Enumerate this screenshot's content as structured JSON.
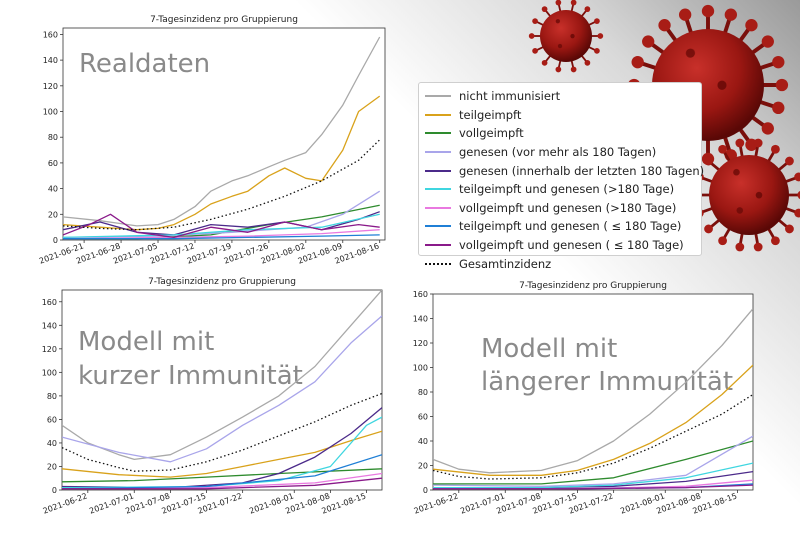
{
  "legend": [
    {
      "name": "nicht immunisiert",
      "color": "#a9a9a9",
      "dash": false
    },
    {
      "name": "teilgeimpft",
      "color": "#d9a21b",
      "dash": false
    },
    {
      "name": "vollgeimpft",
      "color": "#2e8b2e",
      "dash": false
    },
    {
      "name": "genesen (vor mehr als 180 Tagen)",
      "color": "#a9a5ea",
      "dash": false
    },
    {
      "name": "genesen (innerhalb der letzten 180 Tagen)",
      "color": "#4b2a8a",
      "dash": false
    },
    {
      "name": "teilgeimpft und genesen (>180 Tage)",
      "color": "#3fd6e0",
      "dash": false
    },
    {
      "name": "vollgeimpft und genesen (>180 Tage)",
      "color": "#e979e0",
      "dash": false
    },
    {
      "name": "teilgeimpft und genesen ( ≤ 180 Tage)",
      "color": "#1f7fd6",
      "dash": false
    },
    {
      "name": "vollgeimpft und genesen ( ≤ 180 Tage)",
      "color": "#8a1a8a",
      "dash": false
    },
    {
      "name": "Gesamtinzidenz",
      "color": "#111111",
      "dash": true
    }
  ],
  "chart_data": [
    {
      "type": "line",
      "title": "7-Tagesinzidenz pro Gruppierung",
      "overlay_text": [
        "Realdaten"
      ],
      "xlim": [
        "2021-06-17",
        "2021-08-17"
      ],
      "ylim": [
        0,
        165
      ],
      "yticks": [
        0,
        20,
        40,
        60,
        80,
        100,
        120,
        140,
        160
      ],
      "xticks": [
        "2021-06-21",
        "2021-06-28",
        "2021-07-05",
        "2021-07-12",
        "2021-07-19",
        "2021-07-26",
        "2021-08-02",
        "2021-08-09",
        "2021-08-16"
      ],
      "series": [
        {
          "name": "nicht immunisiert",
          "x": [
            "2021-06-17",
            "2021-06-24",
            "2021-07-01",
            "2021-07-05",
            "2021-07-08",
            "2021-07-12",
            "2021-07-15",
            "2021-07-19",
            "2021-07-22",
            "2021-07-26",
            "2021-07-29",
            "2021-08-02",
            "2021-08-05",
            "2021-08-09",
            "2021-08-12",
            "2021-08-16"
          ],
          "y": [
            18,
            15,
            11,
            12,
            16,
            26,
            38,
            46,
            50,
            57,
            62,
            68,
            82,
            105,
            128,
            158
          ]
        },
        {
          "name": "teilgeimpft",
          "x": [
            "2021-06-17",
            "2021-06-24",
            "2021-07-01",
            "2021-07-05",
            "2021-07-08",
            "2021-07-12",
            "2021-07-15",
            "2021-07-19",
            "2021-07-22",
            "2021-07-26",
            "2021-07-29",
            "2021-08-02",
            "2021-08-05",
            "2021-08-09",
            "2021-08-12",
            "2021-08-16"
          ],
          "y": [
            12,
            10,
            8,
            9,
            12,
            20,
            28,
            34,
            38,
            50,
            56,
            48,
            46,
            70,
            100,
            112
          ]
        },
        {
          "name": "vollgeimpft",
          "x": [
            "2021-06-17",
            "2021-07-01",
            "2021-07-15",
            "2021-07-26",
            "2021-08-05",
            "2021-08-16"
          ],
          "y": [
            1,
            1,
            4,
            12,
            18,
            27
          ]
        },
        {
          "name": "genesen (vor mehr als 180 Tagen)",
          "x": [
            "2021-06-17",
            "2021-07-05",
            "2021-07-19",
            "2021-08-02",
            "2021-08-09",
            "2021-08-16"
          ],
          "y": [
            2,
            3,
            6,
            10,
            20,
            38
          ]
        },
        {
          "name": "genesen (innerhalb der letzten 180 Tagen)",
          "x": [
            "2021-06-17",
            "2021-06-24",
            "2021-07-01",
            "2021-07-08",
            "2021-07-15",
            "2021-07-22",
            "2021-07-29",
            "2021-08-05",
            "2021-08-12",
            "2021-08-16"
          ],
          "y": [
            8,
            14,
            6,
            4,
            12,
            10,
            14,
            8,
            16,
            22
          ]
        },
        {
          "name": "teilgeimpft und genesen (>180 Tage)",
          "x": [
            "2021-06-17",
            "2021-07-08",
            "2021-07-22",
            "2021-08-05",
            "2021-08-16"
          ],
          "y": [
            2,
            4,
            8,
            10,
            20
          ]
        },
        {
          "name": "vollgeimpft und genesen (>180 Tage)",
          "x": [
            "2021-06-17",
            "2021-07-08",
            "2021-07-22",
            "2021-08-05",
            "2021-08-16"
          ],
          "y": [
            1,
            2,
            3,
            5,
            8
          ]
        },
        {
          "name": "teilgeimpft und genesen ( ≤ 180 Tage)",
          "x": [
            "2021-06-17",
            "2021-07-08",
            "2021-07-22",
            "2021-08-05",
            "2021-08-16"
          ],
          "y": [
            1,
            1,
            2,
            3,
            4
          ]
        },
        {
          "name": "vollgeimpft und genesen ( ≤ 180 Tage)",
          "x": [
            "2021-06-17",
            "2021-06-22",
            "2021-06-26",
            "2021-07-01",
            "2021-07-08",
            "2021-07-15",
            "2021-07-22",
            "2021-07-29",
            "2021-08-05",
            "2021-08-12",
            "2021-08-16"
          ],
          "y": [
            4,
            12,
            20,
            6,
            2,
            10,
            6,
            14,
            8,
            12,
            10
          ]
        },
        {
          "name": "Gesamtinzidenz",
          "x": [
            "2021-06-17",
            "2021-06-24",
            "2021-07-01",
            "2021-07-08",
            "2021-07-15",
            "2021-07-22",
            "2021-07-29",
            "2021-08-05",
            "2021-08-12",
            "2021-08-16"
          ],
          "y": [
            11,
            9,
            8,
            10,
            16,
            24,
            34,
            46,
            62,
            78
          ]
        }
      ]
    },
    {
      "type": "line",
      "title": "7-Tagesinzidenz pro Gruppierung",
      "overlay_text": [
        "Modell mit",
        "kurzer Immunität"
      ],
      "xlim": [
        "2021-06-17",
        "2021-08-18"
      ],
      "ylim": [
        0,
        170
      ],
      "yticks": [
        0,
        20,
        40,
        60,
        80,
        100,
        120,
        140,
        160
      ],
      "xticks": [
        "2021-06-22",
        "2021-07-01",
        "2021-07-08",
        "2021-07-15",
        "2021-07-22",
        "2021-08-01",
        "2021-08-08",
        "2021-08-15"
      ],
      "series": [
        {
          "name": "nicht immunisiert",
          "x": [
            "2021-06-17",
            "2021-06-22",
            "2021-06-28",
            "2021-07-01",
            "2021-07-08",
            "2021-07-15",
            "2021-07-22",
            "2021-07-29",
            "2021-08-05",
            "2021-08-12",
            "2021-08-18"
          ],
          "y": [
            55,
            40,
            30,
            26,
            30,
            45,
            62,
            80,
            105,
            140,
            172
          ]
        },
        {
          "name": "teilgeimpft",
          "x": [
            "2021-06-17",
            "2021-06-28",
            "2021-07-08",
            "2021-07-15",
            "2021-07-22",
            "2021-07-29",
            "2021-08-05",
            "2021-08-12",
            "2021-08-18"
          ],
          "y": [
            18,
            13,
            11,
            14,
            20,
            26,
            32,
            42,
            50
          ]
        },
        {
          "name": "vollgeimpft",
          "x": [
            "2021-06-17",
            "2021-07-01",
            "2021-07-15",
            "2021-07-29",
            "2021-08-18"
          ],
          "y": [
            7,
            8,
            11,
            14,
            18
          ]
        },
        {
          "name": "genesen (vor mehr als 180 Tagen)",
          "x": [
            "2021-06-17",
            "2021-06-28",
            "2021-07-08",
            "2021-07-15",
            "2021-07-22",
            "2021-07-29",
            "2021-08-05",
            "2021-08-12",
            "2021-08-18"
          ],
          "y": [
            45,
            32,
            24,
            35,
            55,
            72,
            92,
            125,
            148
          ]
        },
        {
          "name": "genesen (innerhalb der letzten 180 Tagen)",
          "x": [
            "2021-06-17",
            "2021-07-08",
            "2021-07-22",
            "2021-07-29",
            "2021-08-05",
            "2021-08-12",
            "2021-08-18"
          ],
          "y": [
            3,
            2,
            6,
            14,
            28,
            48,
            70
          ]
        },
        {
          "name": "teilgeimpft und genesen (>180 Tage)",
          "x": [
            "2021-06-17",
            "2021-07-15",
            "2021-07-29",
            "2021-08-08",
            "2021-08-15",
            "2021-08-18"
          ],
          "y": [
            2,
            3,
            8,
            20,
            55,
            62
          ]
        },
        {
          "name": "vollgeimpft und genesen (>180 Tage)",
          "x": [
            "2021-06-17",
            "2021-07-15",
            "2021-08-05",
            "2021-08-18"
          ],
          "y": [
            1,
            2,
            6,
            14
          ]
        },
        {
          "name": "teilgeimpft und genesen ( ≤ 180 Tage)",
          "x": [
            "2021-06-17",
            "2021-07-15",
            "2021-08-05",
            "2021-08-18"
          ],
          "y": [
            1,
            3,
            12,
            30
          ]
        },
        {
          "name": "vollgeimpft und genesen ( ≤ 180 Tage)",
          "x": [
            "2021-06-17",
            "2021-07-15",
            "2021-08-05",
            "2021-08-18"
          ],
          "y": [
            1,
            1,
            4,
            10
          ]
        },
        {
          "name": "Gesamtinzidenz",
          "x": [
            "2021-06-17",
            "2021-06-22",
            "2021-06-28",
            "2021-07-01",
            "2021-07-08",
            "2021-07-15",
            "2021-07-22",
            "2021-07-29",
            "2021-08-05",
            "2021-08-12",
            "2021-08-18"
          ],
          "y": [
            36,
            26,
            19,
            16,
            17,
            24,
            34,
            46,
            58,
            72,
            82
          ]
        }
      ]
    },
    {
      "type": "line",
      "title": "7-Tagesinzidenz pro Gruppierung",
      "overlay_text": [
        "Modell mit",
        "längerer Immunität"
      ],
      "xlim": [
        "2021-06-17",
        "2021-08-18"
      ],
      "ylim": [
        0,
        160
      ],
      "yticks": [
        0,
        20,
        40,
        60,
        80,
        100,
        120,
        140,
        160
      ],
      "xticks": [
        "2021-06-22",
        "2021-07-01",
        "2021-07-08",
        "2021-07-15",
        "2021-07-22",
        "2021-08-01",
        "2021-08-08",
        "2021-08-15"
      ],
      "series": [
        {
          "name": "nicht immunisiert",
          "x": [
            "2021-06-17",
            "2021-06-22",
            "2021-06-28",
            "2021-07-08",
            "2021-07-15",
            "2021-07-22",
            "2021-07-29",
            "2021-08-05",
            "2021-08-12",
            "2021-08-18"
          ],
          "y": [
            25,
            17,
            14,
            16,
            24,
            40,
            62,
            88,
            118,
            148
          ]
        },
        {
          "name": "teilgeimpft",
          "x": [
            "2021-06-17",
            "2021-06-28",
            "2021-07-08",
            "2021-07-15",
            "2021-07-22",
            "2021-07-29",
            "2021-08-05",
            "2021-08-12",
            "2021-08-18"
          ],
          "y": [
            17,
            12,
            12,
            16,
            25,
            38,
            55,
            78,
            102
          ]
        },
        {
          "name": "vollgeimpft",
          "x": [
            "2021-06-17",
            "2021-07-08",
            "2021-07-22",
            "2021-08-05",
            "2021-08-18"
          ],
          "y": [
            5,
            5,
            10,
            25,
            40
          ]
        },
        {
          "name": "genesen (vor mehr als 180 Tagen)",
          "x": [
            "2021-06-17",
            "2021-07-08",
            "2021-07-22",
            "2021-08-05",
            "2021-08-18"
          ],
          "y": [
            4,
            3,
            5,
            12,
            44
          ]
        },
        {
          "name": "genesen (innerhalb der letzten 180 Tagen)",
          "x": [
            "2021-06-17",
            "2021-07-08",
            "2021-07-22",
            "2021-08-05",
            "2021-08-18"
          ],
          "y": [
            2,
            2,
            3,
            7,
            15
          ]
        },
        {
          "name": "teilgeimpft und genesen (>180 Tage)",
          "x": [
            "2021-06-17",
            "2021-07-08",
            "2021-07-22",
            "2021-08-05",
            "2021-08-18"
          ],
          "y": [
            2,
            2,
            4,
            10,
            22
          ]
        },
        {
          "name": "vollgeimpft und genesen (>180 Tage)",
          "x": [
            "2021-06-17",
            "2021-07-15",
            "2021-08-05",
            "2021-08-18"
          ],
          "y": [
            1,
            1,
            3,
            8
          ]
        },
        {
          "name": "teilgeimpft und genesen ( ≤ 180 Tage)",
          "x": [
            "2021-06-17",
            "2021-07-15",
            "2021-08-05",
            "2021-08-18"
          ],
          "y": [
            1,
            1,
            2,
            5
          ]
        },
        {
          "name": "vollgeimpft und genesen ( ≤ 180 Tage)",
          "x": [
            "2021-06-17",
            "2021-07-15",
            "2021-08-05",
            "2021-08-18"
          ],
          "y": [
            1,
            1,
            2,
            4
          ]
        },
        {
          "name": "Gesamtinzidenz",
          "x": [
            "2021-06-17",
            "2021-06-22",
            "2021-06-28",
            "2021-07-08",
            "2021-07-15",
            "2021-07-22",
            "2021-07-29",
            "2021-08-05",
            "2021-08-12",
            "2021-08-18"
          ],
          "y": [
            16,
            11,
            9,
            10,
            14,
            22,
            34,
            48,
            62,
            78
          ]
        }
      ]
    }
  ]
}
